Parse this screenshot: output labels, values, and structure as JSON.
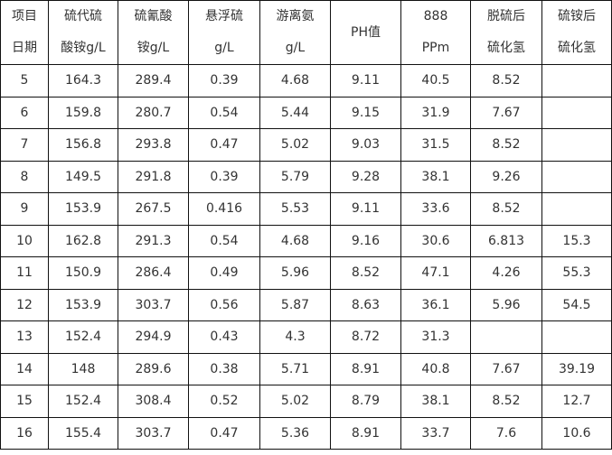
{
  "headers": [
    {
      "line1": "项目",
      "line2": "日期"
    },
    {
      "line1": "硫代硫",
      "line2": "酸铵g/L"
    },
    {
      "line1": "硫氰酸",
      "line2": "铵g/L"
    },
    {
      "line1": "悬浮硫",
      "line2": "g/L"
    },
    {
      "line1": "游离氨",
      "line2": "g/L"
    },
    {
      "line1": "PH值",
      "line2": ""
    },
    {
      "line1": "888",
      "line2": "PPm"
    },
    {
      "line1": "脱硫后",
      "line2": "硫化氢"
    },
    {
      "line1": "硫铵后",
      "line2": "硫化氢"
    }
  ],
  "rows": [
    [
      "5",
      "164.3",
      "289.4",
      "0.39",
      "4.68",
      "9.11",
      "40.5",
      "8.52",
      ""
    ],
    [
      "6",
      "159.8",
      "280.7",
      "0.54",
      "5.44",
      "9.15",
      "31.9",
      "7.67",
      ""
    ],
    [
      "7",
      "156.8",
      "293.8",
      "0.47",
      "5.02",
      "9.03",
      "31.5",
      "8.52",
      ""
    ],
    [
      "8",
      "149.5",
      "291.8",
      "0.39",
      "5.79",
      "9.28",
      "38.1",
      "9.26",
      ""
    ],
    [
      "9",
      "153.9",
      "267.5",
      "0.416",
      "5.53",
      "9.11",
      "33.6",
      "8.52",
      ""
    ],
    [
      "10",
      "162.8",
      "291.3",
      "0.54",
      "4.68",
      "9.16",
      "30.6",
      "6.813",
      "15.3"
    ],
    [
      "11",
      "150.9",
      "286.4",
      "0.49",
      "5.96",
      "8.52",
      "47.1",
      "4.26",
      "55.3"
    ],
    [
      "12",
      "153.9",
      "303.7",
      "0.56",
      "5.87",
      "8.63",
      "36.1",
      "5.96",
      "54.5"
    ],
    [
      "13",
      "152.4",
      "294.9",
      "0.43",
      "4.3",
      "8.72",
      "31.3",
      "",
      ""
    ],
    [
      "14",
      "148",
      "289.6",
      "0.38",
      "5.71",
      "8.91",
      "40.8",
      "7.67",
      "39.19"
    ],
    [
      "15",
      "152.4",
      "308.4",
      "0.52",
      "5.02",
      "8.79",
      "38.1",
      "8.52",
      "12.7"
    ],
    [
      "16",
      "155.4",
      "303.7",
      "0.47",
      "5.36",
      "8.91",
      "33.7",
      "7.6",
      "10.6"
    ]
  ]
}
